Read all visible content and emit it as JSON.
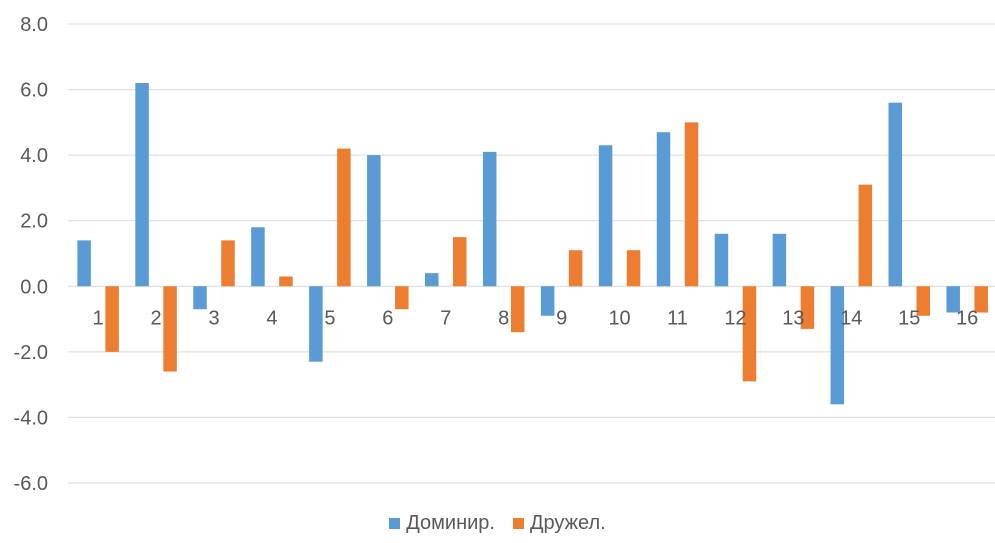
{
  "chart_data": {
    "type": "bar",
    "title": "",
    "xlabel": "",
    "ylabel": "",
    "ylim": [
      -6,
      8
    ],
    "yticks": [
      -6,
      -4,
      -2,
      0,
      2,
      4,
      6,
      8
    ],
    "ytick_format": "fixed1",
    "grid": true,
    "legend_position": "bottom",
    "categories": [
      "1",
      "2",
      "3",
      "4",
      "5",
      "6",
      "7",
      "8",
      "9",
      "10",
      "11",
      "12",
      "13",
      "14",
      "15",
      "16"
    ],
    "series": [
      {
        "name": "Доминир.",
        "color": "#5B9BD5",
        "values": [
          1.4,
          6.2,
          -0.7,
          1.8,
          -2.3,
          4.0,
          0.4,
          4.1,
          -0.9,
          4.3,
          4.7,
          1.6,
          1.6,
          -3.6,
          5.6,
          -0.8
        ]
      },
      {
        "name": "Дружел.",
        "color": "#ED7D31",
        "values": [
          -2.0,
          -2.6,
          1.4,
          0.3,
          4.2,
          -0.7,
          1.5,
          -1.4,
          1.1,
          1.1,
          5.0,
          -2.9,
          -1.3,
          3.1,
          -0.9,
          -0.8
        ]
      }
    ]
  }
}
